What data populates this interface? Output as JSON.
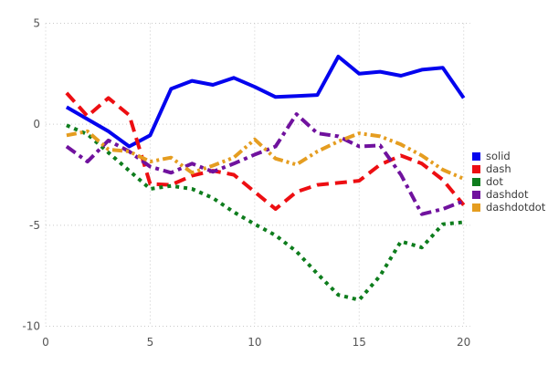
{
  "chart_data": {
    "type": "line",
    "title": "",
    "xlabel": "",
    "ylabel": "",
    "xlim": [
      0,
      20
    ],
    "ylim": [
      -10,
      5
    ],
    "x_ticks": [
      0,
      5,
      10,
      15,
      20
    ],
    "y_ticks": [
      5,
      0,
      -5,
      -10
    ],
    "grid": true,
    "grid_style": "dotted",
    "legend_position": "center-right",
    "x": [
      1,
      2,
      3,
      4,
      5,
      6,
      7,
      8,
      9,
      10,
      11,
      12,
      13,
      14,
      15,
      16,
      17,
      18,
      19,
      20
    ],
    "series": [
      {
        "name": "solid",
        "color": "#0404ee",
        "line_style": "solid",
        "values": [
          0.85,
          0.25,
          -0.35,
          -1.1,
          -0.55,
          1.75,
          2.15,
          1.95,
          2.3,
          1.85,
          1.35,
          1.4,
          1.45,
          3.35,
          2.5,
          2.6,
          2.4,
          2.7,
          2.8,
          1.3
        ]
      },
      {
        "name": "dash",
        "color": "#ed0e12",
        "line_style": "dash",
        "values": [
          1.55,
          0.4,
          1.3,
          0.45,
          -2.95,
          -3.0,
          -2.55,
          -2.3,
          -2.5,
          -3.35,
          -4.2,
          -3.35,
          -3.0,
          -2.9,
          -2.8,
          -2.0,
          -1.55,
          -1.95,
          -2.75,
          -4.0
        ]
      },
      {
        "name": "dot",
        "color": "#0e7d1d",
        "line_style": "dot",
        "values": [
          -0.05,
          -0.5,
          -1.4,
          -2.3,
          -3.2,
          -3.05,
          -3.2,
          -3.65,
          -4.35,
          -4.95,
          -5.5,
          -6.3,
          -7.4,
          -8.45,
          -8.7,
          -7.5,
          -5.8,
          -6.1,
          -4.95,
          -4.85
        ]
      },
      {
        "name": "dashdot",
        "color": "#70129e",
        "line_style": "dashdot",
        "values": [
          -1.1,
          -1.85,
          -0.8,
          -1.35,
          -2.1,
          -2.4,
          -1.95,
          -2.35,
          -1.95,
          -1.5,
          -1.1,
          0.5,
          -0.45,
          -0.6,
          -1.1,
          -1.05,
          -2.5,
          -4.45,
          -4.2,
          -3.8
        ]
      },
      {
        "name": "dashdotdot",
        "color": "#e59d20",
        "line_style": "dashdotdot",
        "values": [
          -0.55,
          -0.35,
          -1.25,
          -1.35,
          -1.85,
          -1.65,
          -2.4,
          -2.05,
          -1.65,
          -0.75,
          -1.7,
          -2.0,
          -1.35,
          -0.85,
          -0.45,
          -0.6,
          -1.0,
          -1.55,
          -2.25,
          -2.7
        ]
      }
    ],
    "legend_entries": [
      "solid",
      "dash",
      "dot",
      "dashdot",
      "dashdotdot"
    ]
  }
}
